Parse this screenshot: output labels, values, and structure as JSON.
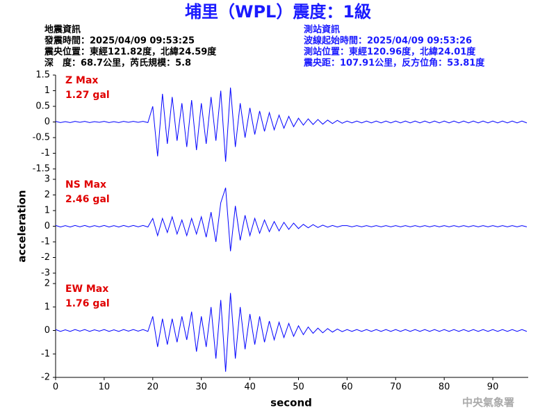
{
  "header": {
    "title": "埔里（WPL）震度：1級",
    "left": [
      "地震資訊",
      "發震時間：2025/04/09 09:53:25",
      "震央位置：東經121.82度，北緯24.59度",
      "深　度：68.7公里，芮氏規模：5.8"
    ],
    "right": [
      "測站資訊",
      "波線起始時間：2025/04/09 09:53:26",
      "測站位置：東經120.96度，北緯24.01度",
      "震央距：107.91公里，反方位角：53.81度"
    ],
    "footer": "中央氣象署"
  },
  "chart_data": [
    {
      "type": "line",
      "color": "#0000ff",
      "annotation": [
        "Z Max",
        "1.27 gal"
      ],
      "xlim": [
        0,
        97
      ],
      "ylim": [
        -1.5,
        1.5
      ],
      "yticks": [
        -1.5,
        -1,
        -0.5,
        0,
        0.5,
        1,
        1.5
      ],
      "x": [
        0,
        1,
        2,
        3,
        4,
        5,
        6,
        7,
        8,
        9,
        10,
        11,
        12,
        13,
        14,
        15,
        16,
        17,
        18,
        19,
        20,
        21,
        22,
        23,
        24,
        25,
        26,
        27,
        28,
        29,
        30,
        31,
        32,
        33,
        34,
        35,
        36,
        37,
        38,
        39,
        40,
        41,
        42,
        43,
        44,
        45,
        46,
        47,
        48,
        49,
        50,
        51,
        52,
        53,
        54,
        55,
        56,
        57,
        58,
        59,
        60,
        61,
        62,
        63,
        64,
        65,
        66,
        67,
        68,
        69,
        70,
        71,
        72,
        73,
        74,
        75,
        76,
        77,
        78,
        79,
        80,
        81,
        82,
        83,
        84,
        85,
        86,
        87,
        88,
        89,
        90,
        91,
        92,
        93,
        94,
        95,
        96,
        97
      ],
      "values": [
        0.02,
        -0.02,
        0.01,
        -0.02,
        0.02,
        -0.01,
        0.02,
        -0.02,
        0.01,
        -0.01,
        0.02,
        -0.02,
        0.01,
        -0.02,
        0.02,
        -0.01,
        0.02,
        -0.01,
        0.02,
        -0.02,
        0.5,
        -1.1,
        0.9,
        -0.7,
        0.8,
        -0.6,
        0.6,
        -0.8,
        0.7,
        -0.9,
        0.6,
        -0.7,
        0.8,
        -0.6,
        1.0,
        -1.27,
        1.1,
        -0.8,
        0.6,
        -0.5,
        0.45,
        -0.4,
        0.35,
        -0.3,
        0.3,
        -0.25,
        0.22,
        -0.2,
        0.18,
        -0.15,
        0.12,
        -0.1,
        0.1,
        -0.08,
        0.08,
        -0.07,
        0.06,
        -0.05,
        0.05,
        -0.04,
        0.03,
        -0.03,
        0.03,
        -0.03,
        0.03,
        -0.03,
        0.03,
        -0.03,
        0.03,
        -0.03,
        0.03,
        -0.03,
        0.03,
        -0.03,
        0.03,
        -0.03,
        0.03,
        -0.03,
        0.03,
        -0.03,
        0.03,
        -0.03,
        0.03,
        -0.03,
        0.03,
        -0.03,
        0.03,
        -0.03,
        0.03,
        -0.03,
        0.03,
        -0.03,
        0.03,
        -0.03,
        0.03,
        -0.03,
        0.03,
        -0.03
      ]
    },
    {
      "type": "line",
      "color": "#0000ff",
      "annotation": [
        "NS Max",
        "2.46 gal"
      ],
      "ylabel": "acceleration",
      "xlim": [
        0,
        97
      ],
      "ylim": [
        -3,
        3
      ],
      "yticks": [
        -3,
        -2,
        -1,
        0,
        1,
        2,
        3
      ],
      "x": [
        0,
        1,
        2,
        3,
        4,
        5,
        6,
        7,
        8,
        9,
        10,
        11,
        12,
        13,
        14,
        15,
        16,
        17,
        18,
        19,
        20,
        21,
        22,
        23,
        24,
        25,
        26,
        27,
        28,
        29,
        30,
        31,
        32,
        33,
        34,
        35,
        36,
        37,
        38,
        39,
        40,
        41,
        42,
        43,
        44,
        45,
        46,
        47,
        48,
        49,
        50,
        51,
        52,
        53,
        54,
        55,
        56,
        57,
        58,
        59,
        60,
        61,
        62,
        63,
        64,
        65,
        66,
        67,
        68,
        69,
        70,
        71,
        72,
        73,
        74,
        75,
        76,
        77,
        78,
        79,
        80,
        81,
        82,
        83,
        84,
        85,
        86,
        87,
        88,
        89,
        90,
        91,
        92,
        93,
        94,
        95,
        96,
        97
      ],
      "values": [
        0.05,
        -0.05,
        0.04,
        -0.05,
        0.05,
        -0.04,
        0.05,
        -0.05,
        0.04,
        -0.04,
        0.05,
        -0.05,
        0.04,
        -0.05,
        0.05,
        -0.04,
        0.05,
        -0.04,
        0.05,
        -0.05,
        0.5,
        -0.6,
        0.5,
        -0.4,
        0.6,
        -0.5,
        0.4,
        -0.6,
        0.5,
        -0.5,
        0.6,
        -0.7,
        0.9,
        -1.0,
        1.5,
        2.46,
        -1.6,
        1.3,
        -0.9,
        0.7,
        -0.6,
        0.5,
        -0.45,
        0.4,
        -0.35,
        0.3,
        -0.3,
        0.25,
        -0.2,
        0.2,
        -0.15,
        0.12,
        -0.1,
        0.1,
        -0.08,
        0.07,
        -0.06,
        0.05,
        -0.05,
        0.04,
        0.04,
        -0.04,
        0.04,
        -0.04,
        0.04,
        -0.04,
        0.04,
        -0.04,
        0.04,
        -0.04,
        0.04,
        -0.04,
        0.04,
        -0.04,
        0.04,
        -0.04,
        0.04,
        -0.04,
        0.04,
        -0.04,
        0.04,
        -0.04,
        0.04,
        -0.04,
        0.04,
        -0.04,
        0.04,
        -0.04,
        0.04,
        -0.04,
        0.04,
        -0.04,
        0.04,
        -0.04,
        0.04,
        -0.04,
        0.04,
        -0.04
      ]
    },
    {
      "type": "line",
      "color": "#0000ff",
      "annotation": [
        "EW Max",
        "1.76 gal"
      ],
      "xlabel": "second",
      "xlim": [
        0,
        97
      ],
      "ylim": [
        -2,
        2
      ],
      "yticks": [
        -2,
        -1,
        0,
        1,
        2
      ],
      "xticks": [
        0,
        10,
        20,
        30,
        40,
        50,
        60,
        70,
        80,
        90
      ],
      "x": [
        0,
        1,
        2,
        3,
        4,
        5,
        6,
        7,
        8,
        9,
        10,
        11,
        12,
        13,
        14,
        15,
        16,
        17,
        18,
        19,
        20,
        21,
        22,
        23,
        24,
        25,
        26,
        27,
        28,
        29,
        30,
        31,
        32,
        33,
        34,
        35,
        36,
        37,
        38,
        39,
        40,
        41,
        42,
        43,
        44,
        45,
        46,
        47,
        48,
        49,
        50,
        51,
        52,
        53,
        54,
        55,
        56,
        57,
        58,
        59,
        60,
        61,
        62,
        63,
        64,
        65,
        66,
        67,
        68,
        69,
        70,
        71,
        72,
        73,
        74,
        75,
        76,
        77,
        78,
        79,
        80,
        81,
        82,
        83,
        84,
        85,
        86,
        87,
        88,
        89,
        90,
        91,
        92,
        93,
        94,
        95,
        96,
        97
      ],
      "values": [
        0.04,
        -0.04,
        0.03,
        -0.04,
        0.04,
        -0.03,
        0.04,
        -0.04,
        0.03,
        -0.03,
        0.04,
        -0.04,
        0.03,
        -0.04,
        0.04,
        -0.03,
        0.04,
        -0.03,
        0.04,
        -0.04,
        0.6,
        -0.7,
        0.5,
        -0.6,
        0.5,
        -0.5,
        0.6,
        -0.4,
        0.8,
        -0.9,
        0.6,
        -0.7,
        1.0,
        -1.2,
        1.3,
        -1.76,
        1.6,
        -1.2,
        1.0,
        -0.8,
        0.7,
        -0.6,
        0.6,
        -0.5,
        0.4,
        -0.4,
        0.35,
        -0.3,
        0.3,
        -0.25,
        0.2,
        -0.18,
        0.15,
        -0.12,
        0.1,
        -0.1,
        0.08,
        -0.07,
        0.06,
        -0.05,
        0.04,
        -0.04,
        0.04,
        -0.04,
        0.04,
        -0.04,
        0.04,
        -0.04,
        0.04,
        -0.04,
        0.04,
        -0.04,
        0.04,
        -0.04,
        0.04,
        -0.04,
        0.04,
        -0.04,
        0.04,
        -0.04,
        0.04,
        -0.04,
        0.04,
        -0.04,
        0.04,
        -0.04,
        0.04,
        -0.04,
        0.04,
        -0.04,
        0.04,
        -0.04,
        0.04,
        -0.04,
        0.04,
        -0.04,
        0.04,
        -0.04
      ]
    }
  ]
}
